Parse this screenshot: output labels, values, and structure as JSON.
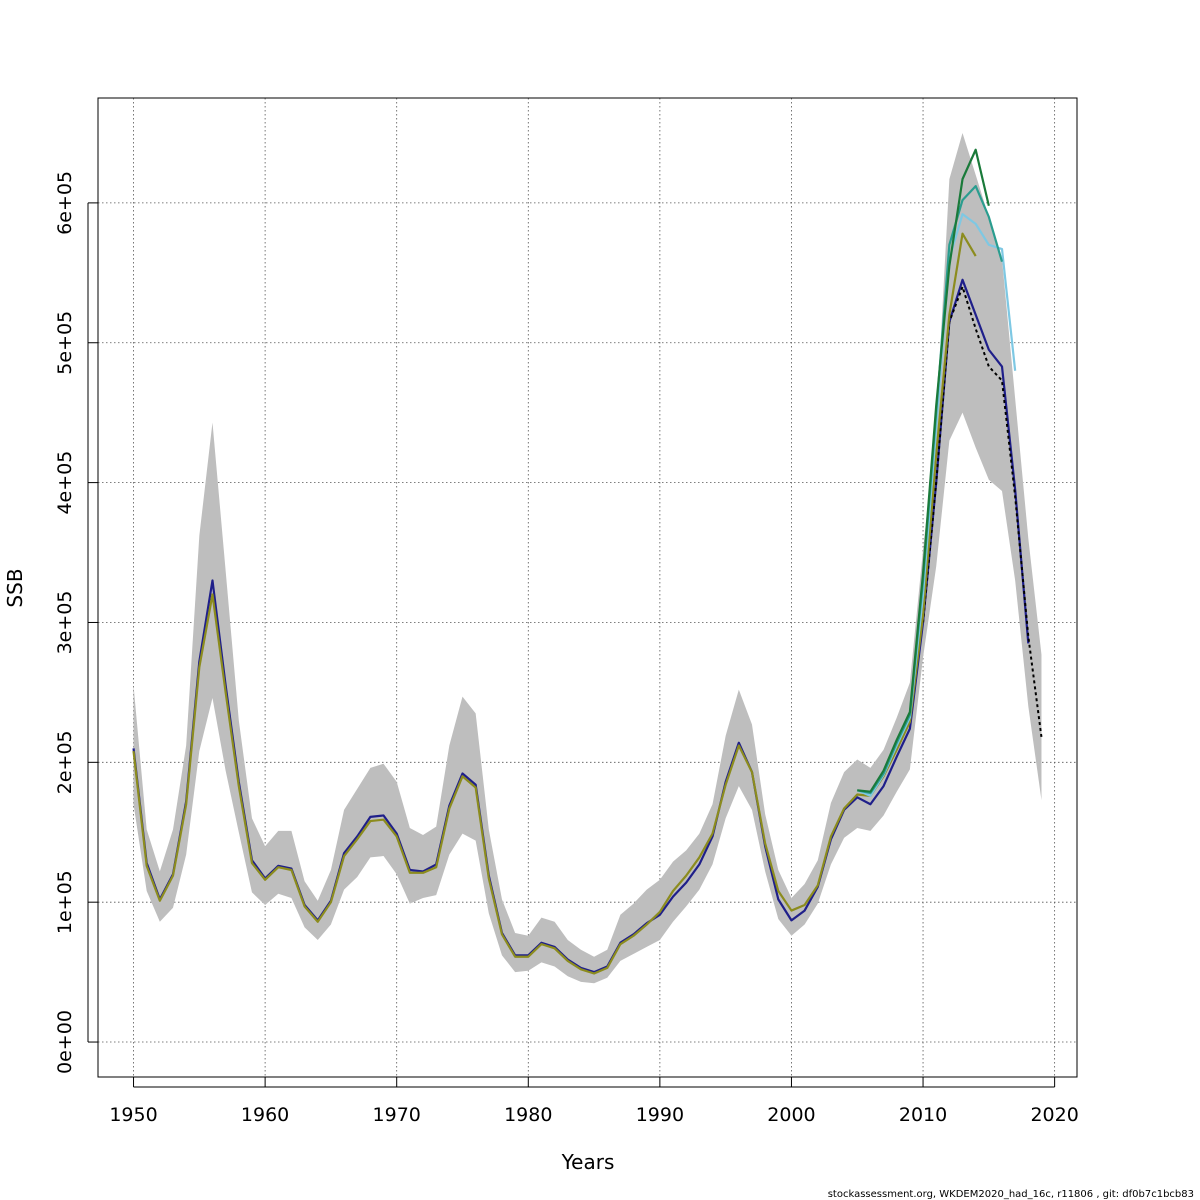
{
  "chart_data": {
    "type": "line",
    "xlabel": "Years",
    "ylabel": "SSB",
    "xlim": [
      1947.3,
      2021.7
    ],
    "ylim": [
      -25000,
      675000
    ],
    "x_ticks": [
      1950,
      1960,
      1970,
      1980,
      1990,
      2000,
      2010,
      2020
    ],
    "x_tick_labels": [
      "1950",
      "1960",
      "1970",
      "1980",
      "1990",
      "2000",
      "2010",
      "2020"
    ],
    "y_ticks": [
      0,
      100000,
      200000,
      300000,
      400000,
      500000,
      600000
    ],
    "y_tick_labels": [
      "0e+00",
      "1e+05",
      "2e+05",
      "3e+05",
      "4e+05",
      "5e+05",
      "6e+05"
    ],
    "grid": true,
    "legend": "none",
    "footer": "stockassessment.org, WKDEM2020_had_16c, r11806 , git: df0b7c1bcb83",
    "colors": {
      "band": "#bebebe",
      "base": "#000000",
      "navy": "#1f1f8a",
      "olive": "#8c8c1e",
      "skyblue": "#7ec8e3",
      "teal": "#2a9d8f",
      "green": "#1a7a3a"
    },
    "band": {
      "x": [
        1950,
        1951,
        1952,
        1953,
        1954,
        1955,
        1956,
        1957,
        1958,
        1959,
        1960,
        1961,
        1962,
        1963,
        1964,
        1965,
        1966,
        1967,
        1968,
        1969,
        1970,
        1971,
        1972,
        1973,
        1974,
        1975,
        1976,
        1977,
        1978,
        1979,
        1980,
        1981,
        1982,
        1983,
        1984,
        1985,
        1986,
        1987,
        1988,
        1989,
        1990,
        1991,
        1992,
        1993,
        1994,
        1995,
        1996,
        1997,
        1998,
        1999,
        2000,
        2001,
        2002,
        2003,
        2004,
        2005,
        2006,
        2007,
        2008,
        2009,
        2010,
        2011,
        2012,
        2013,
        2014,
        2015,
        2016,
        2017,
        2018,
        2019
      ],
      "upper": [
        255000,
        152000,
        122000,
        152000,
        212000,
        362000,
        443000,
        337000,
        230000,
        160000,
        140000,
        151000,
        151000,
        115000,
        101000,
        123000,
        166000,
        181000,
        196000,
        199000,
        186000,
        153000,
        148000,
        154000,
        212000,
        247000,
        235000,
        152000,
        102000,
        78000,
        76000,
        89000,
        86000,
        73000,
        66000,
        61000,
        66000,
        91000,
        99000,
        109000,
        116000,
        129000,
        137000,
        149000,
        170000,
        219000,
        252000,
        227000,
        163000,
        123000,
        103000,
        113000,
        130000,
        171000,
        193000,
        202000,
        196000,
        209000,
        232000,
        257000,
        352000,
        442000,
        617000,
        650000,
        620000,
        590000,
        560000,
        460000,
        360000,
        277000
      ],
      "lower": [
        170000,
        108000,
        86000,
        96000,
        134000,
        208000,
        246000,
        194000,
        150000,
        107000,
        98000,
        106000,
        103000,
        82000,
        73000,
        84000,
        109000,
        118000,
        132000,
        133000,
        120000,
        99000,
        103000,
        105000,
        134000,
        149000,
        144000,
        92000,
        62000,
        50000,
        51000,
        57000,
        54000,
        47000,
        43000,
        42000,
        46000,
        58000,
        63000,
        68000,
        73000,
        86000,
        97000,
        109000,
        127000,
        160000,
        183000,
        166000,
        122000,
        88000,
        76000,
        84000,
        99000,
        127000,
        146000,
        153000,
        151000,
        162000,
        179000,
        195000,
        275000,
        340000,
        430000,
        450000,
        425000,
        402000,
        394000,
        330000,
        240000,
        173000
      ]
    },
    "series": [
      {
        "key": "navy",
        "x": [
          1950,
          1951,
          1952,
          1953,
          1954,
          1955,
          1956,
          1957,
          1958,
          1959,
          1960,
          1961,
          1962,
          1963,
          1964,
          1965,
          1966,
          1967,
          1968,
          1969,
          1970,
          1971,
          1972,
          1973,
          1974,
          1975,
          1976,
          1977,
          1978,
          1979,
          1980,
          1981,
          1982,
          1983,
          1984,
          1985,
          1986,
          1987,
          1988,
          1989,
          1990,
          1991,
          1992,
          1993,
          1994,
          1995,
          1996,
          1997,
          1998,
          1999,
          2000,
          2001,
          2002,
          2003,
          2004,
          2005,
          2006,
          2007,
          2008,
          2009,
          2010,
          2011,
          2012,
          2013,
          2014,
          2015,
          2016,
          2017,
          2018
        ],
        "y": [
          210000,
          128000,
          102000,
          120000,
          172000,
          272000,
          330000,
          255000,
          186000,
          130000,
          117000,
          126000,
          124000,
          98000,
          87000,
          101000,
          135000,
          147000,
          161000,
          162000,
          149000,
          123000,
          122000,
          127000,
          169000,
          192000,
          184000,
          119000,
          78000,
          62000,
          62000,
          71000,
          68000,
          59000,
          53000,
          50000,
          54000,
          71000,
          77000,
          85000,
          91000,
          104000,
          114000,
          127000,
          147000,
          186000,
          214000,
          193000,
          140000,
          102000,
          87000,
          94000,
          111000,
          145000,
          166000,
          175000,
          170000,
          183000,
          204000,
          224000,
          300000,
          400000,
          515000,
          545000,
          520000,
          495000,
          483000,
          395000,
          285000
        ]
      },
      {
        "key": "base",
        "dashed": true,
        "x": [
          2010,
          2011,
          2012,
          2013,
          2014,
          2015,
          2016,
          2017,
          2018,
          2019
        ],
        "y": [
          300000,
          400000,
          515000,
          540000,
          510000,
          483000,
          473000,
          390000,
          290000,
          218000
        ]
      },
      {
        "key": "olive",
        "x": [
          1950,
          1951,
          1952,
          1953,
          1954,
          1955,
          1956,
          1957,
          1958,
          1959,
          1960,
          1961,
          1962,
          1963,
          1964,
          1965,
          1966,
          1967,
          1968,
          1969,
          1970,
          1971,
          1972,
          1973,
          1974,
          1975,
          1976,
          1977,
          1978,
          1979,
          1980,
          1981,
          1982,
          1983,
          1984,
          1985,
          1986,
          1987,
          1988,
          1989,
          1990,
          1991,
          1992,
          1993,
          1994,
          1995,
          1996,
          1997,
          1998,
          1999,
          2000,
          2001,
          2002,
          2003,
          2004,
          2005,
          2006,
          2007,
          2008,
          2009,
          2010,
          2011,
          2012,
          2013,
          2014
        ],
        "y": [
          208000,
          126000,
          101000,
          119000,
          170000,
          268000,
          320000,
          250000,
          183000,
          128000,
          116000,
          125000,
          123000,
          97000,
          86000,
          100000,
          133000,
          145000,
          158000,
          159000,
          147000,
          121000,
          121000,
          125000,
          167000,
          190000,
          182000,
          117000,
          77000,
          61000,
          61000,
          70000,
          67000,
          58000,
          52000,
          49000,
          53000,
          70000,
          76000,
          84000,
          93000,
          108000,
          119000,
          132000,
          149000,
          184000,
          212000,
          193000,
          142000,
          108000,
          94000,
          98000,
          112000,
          147000,
          167000,
          177000,
          176000,
          190000,
          209000,
          229000,
          305000,
          420000,
          520000,
          578000,
          562000
        ]
      },
      {
        "key": "skyblue",
        "x": [
          2005,
          2006,
          2007,
          2008,
          2009,
          2010,
          2011,
          2012,
          2013,
          2014,
          2015,
          2016,
          2017
        ],
        "y": [
          180000,
          176000,
          191000,
          212000,
          232000,
          320000,
          440000,
          560000,
          592000,
          585000,
          570000,
          567000,
          480000
        ]
      },
      {
        "key": "teal",
        "x": [
          2005,
          2006,
          2007,
          2008,
          2009,
          2010,
          2011,
          2012,
          2013,
          2014,
          2015,
          2016
        ],
        "y": [
          180000,
          178000,
          192000,
          214000,
          234000,
          330000,
          450000,
          570000,
          602000,
          612000,
          590000,
          558000
        ]
      },
      {
        "key": "green",
        "x": [
          2005,
          2006,
          2007,
          2008,
          2009,
          2010,
          2011,
          2012,
          2013,
          2014,
          2015
        ],
        "y": [
          180000,
          179000,
          194000,
          216000,
          236000,
          335000,
          455000,
          555000,
          617000,
          638000,
          598000
        ]
      }
    ]
  }
}
